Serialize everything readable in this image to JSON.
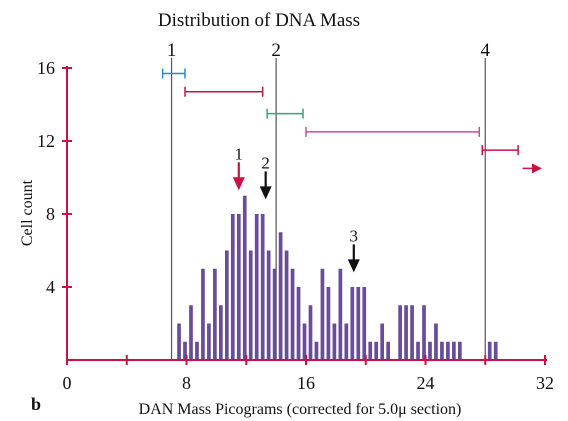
{
  "chart_data": {
    "type": "bar",
    "title": "Distribution of DNA Mass",
    "xlabel": "DAN Mass Picograms (corrected for 5.0μ section)",
    "ylabel": "Cell count",
    "panel_label": "b",
    "xlim": [
      0,
      32
    ],
    "ylim": [
      0,
      16
    ],
    "x_ticks": [
      0,
      8,
      16,
      24,
      32
    ],
    "x_minor_ticks": [
      4,
      12,
      20,
      28
    ],
    "y_ticks": [
      4,
      8,
      12,
      16
    ],
    "axis_color": "#cc1144",
    "bar_color": "#6a4c9c",
    "bars": {
      "x": [
        7.5,
        7.9,
        8.3,
        8.7,
        9.1,
        9.5,
        9.9,
        10.3,
        10.7,
        11.1,
        11.5,
        11.9,
        12.3,
        12.7,
        13.1,
        13.5,
        13.9,
        14.3,
        14.7,
        15.1,
        15.5,
        15.9,
        16.3,
        16.7,
        17.1,
        17.5,
        17.9,
        18.3,
        18.7,
        19.1,
        19.5,
        19.9,
        20.3,
        20.7,
        21.1,
        21.5,
        21.9,
        22.3,
        22.7,
        23.1,
        23.5,
        23.9,
        24.3,
        24.7,
        25.1,
        25.5,
        25.9,
        26.3,
        28.3,
        28.7
      ],
      "values": [
        2,
        1,
        3,
        1,
        5,
        2,
        5,
        3,
        6,
        8,
        8,
        9,
        6,
        8,
        8,
        6,
        5,
        7,
        6,
        5,
        4,
        2,
        3,
        1,
        5,
        4,
        2,
        5,
        2,
        4,
        4,
        4,
        1,
        1,
        2,
        1,
        0,
        3,
        3,
        3,
        1,
        3,
        1,
        2,
        1,
        1,
        1,
        1,
        1,
        1
      ]
    },
    "vertical_lines": [
      {
        "label": "1",
        "x": 7.0,
        "color": "#555555"
      },
      {
        "label": "2",
        "x": 14.0,
        "color": "#555555"
      },
      {
        "label": "4",
        "x": 28.0,
        "color": "#555555"
      }
    ],
    "error_ranges": [
      {
        "x_start": 6.4,
        "x_end": 7.9,
        "y": 15.7,
        "color": "#1f8fd0"
      },
      {
        "x_start": 7.9,
        "x_end": 13.1,
        "y": 14.7,
        "color": "#cc1144"
      },
      {
        "x_start": 13.4,
        "x_end": 15.8,
        "y": 13.5,
        "color": "#3aa37d"
      },
      {
        "x_start": 16.0,
        "x_end": 27.6,
        "y": 12.5,
        "color": "#c0529a"
      },
      {
        "x_start": 27.8,
        "x_end": 30.2,
        "y": 11.5,
        "color": "#cc1144"
      }
    ],
    "extension_arrow": {
      "x_start": 30.5,
      "x_end": 31.8,
      "y": 10.5,
      "color": "#cc1144"
    },
    "arrows": [
      {
        "label": "1",
        "x": 11.5,
        "y_tip": 9.3,
        "color": "#cc1144"
      },
      {
        "label": "2",
        "x": 13.3,
        "y_tip": 8.8,
        "color": "#111111"
      },
      {
        "label": "3",
        "x": 19.2,
        "y_tip": 4.8,
        "color": "#111111"
      }
    ]
  }
}
